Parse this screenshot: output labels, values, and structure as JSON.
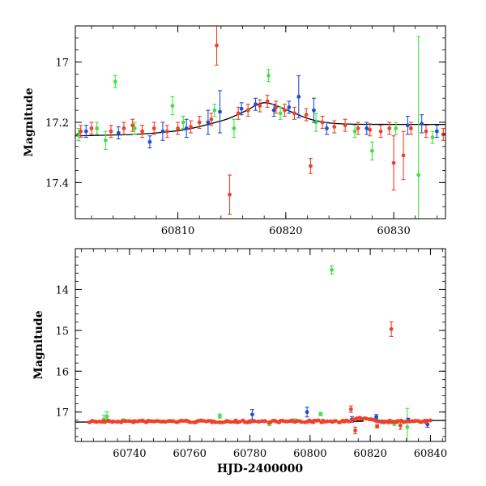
{
  "colors": {
    "green": "#44e044",
    "blue": "#1f4fd8",
    "red": "#f0402a",
    "model": "#000000"
  },
  "chart_data": [
    {
      "type": "scatter",
      "panel": "top",
      "xlabel": "",
      "ylabel": "Magnitude",
      "xlim": [
        60800.5,
        60834.8
      ],
      "ylim": [
        17.52,
        16.88
      ],
      "y_inverted": true,
      "x_ticks": [
        60810,
        60820,
        60830
      ],
      "x_tick_labels": [
        "60810",
        "60820",
        "60830"
      ],
      "y_ticks": [
        17.0,
        17.2,
        17.4
      ],
      "y_tick_labels": [
        "17",
        "17.2",
        "17.4"
      ],
      "model_curve": {
        "x": [
          60800.5,
          60803,
          60806,
          60809,
          60811,
          60813,
          60814.5,
          60815.5,
          60816.5,
          60817.3,
          60818,
          60818.7,
          60819.5,
          60820.5,
          60821.5,
          60822.5,
          60824,
          60826,
          60830,
          60834.8
        ],
        "y": [
          17.245,
          17.243,
          17.24,
          17.232,
          17.222,
          17.205,
          17.19,
          17.175,
          17.158,
          17.142,
          17.135,
          17.139,
          17.15,
          17.165,
          17.18,
          17.192,
          17.202,
          17.206,
          17.207,
          17.207
        ]
      },
      "series": [
        {
          "color_key": "green",
          "points": [
            {
              "x": 60800.8,
              "y": 17.24,
              "err": 0.02
            },
            {
              "x": 60802.5,
              "y": 17.22,
              "err": 0.02
            },
            {
              "x": 60803.3,
              "y": 17.26,
              "err": 0.03
            },
            {
              "x": 60804.2,
              "y": 17.065,
              "err": 0.02
            },
            {
              "x": 60806.0,
              "y": 17.22,
              "err": 0.02
            },
            {
              "x": 60809.5,
              "y": 17.145,
              "err": 0.03
            },
            {
              "x": 60810.5,
              "y": 17.2,
              "err": 0.02
            },
            {
              "x": 60813.4,
              "y": 17.16,
              "err": 0.02
            },
            {
              "x": 60815.2,
              "y": 17.22,
              "err": 0.03
            },
            {
              "x": 60818.4,
              "y": 17.045,
              "err": 0.02
            },
            {
              "x": 60819.5,
              "y": 17.17,
              "err": 0.02
            },
            {
              "x": 60822.8,
              "y": 17.2,
              "err": 0.03
            },
            {
              "x": 60826.4,
              "y": 17.23,
              "err": 0.02
            },
            {
              "x": 60828.0,
              "y": 17.295,
              "err": 0.03
            },
            {
              "x": 60830.2,
              "y": 17.22,
              "err": 0.02
            },
            {
              "x": 60832.3,
              "y": 17.375,
              "err": 0.46
            },
            {
              "x": 60833.6,
              "y": 17.25,
              "err": 0.02
            }
          ]
        },
        {
          "color_key": "blue",
          "points": [
            {
              "x": 60801.5,
              "y": 17.23,
              "err": 0.02
            },
            {
              "x": 60804.5,
              "y": 17.235,
              "err": 0.02
            },
            {
              "x": 60807.4,
              "y": 17.265,
              "err": 0.02
            },
            {
              "x": 60808.6,
              "y": 17.23,
              "err": 0.03
            },
            {
              "x": 60810.8,
              "y": 17.22,
              "err": 0.03
            },
            {
              "x": 60812.8,
              "y": 17.2,
              "err": 0.04
            },
            {
              "x": 60813.9,
              "y": 17.165,
              "err": 0.07
            },
            {
              "x": 60815.9,
              "y": 17.155,
              "err": 0.02
            },
            {
              "x": 60817.2,
              "y": 17.14,
              "err": 0.02
            },
            {
              "x": 60818.9,
              "y": 17.16,
              "err": 0.02
            },
            {
              "x": 60820.3,
              "y": 17.15,
              "err": 0.02
            },
            {
              "x": 60821.2,
              "y": 17.115,
              "err": 0.07
            },
            {
              "x": 60822.6,
              "y": 17.16,
              "err": 0.04
            },
            {
              "x": 60823.8,
              "y": 17.22,
              "err": 0.02
            },
            {
              "x": 60827.5,
              "y": 17.22,
              "err": 0.02
            },
            {
              "x": 60831.3,
              "y": 17.21,
              "err": 0.03
            },
            {
              "x": 60832.6,
              "y": 17.205,
              "err": 0.03
            },
            {
              "x": 60834.0,
              "y": 17.23,
              "err": 0.02
            }
          ]
        },
        {
          "color_key": "red",
          "points": [
            {
              "x": 60801.0,
              "y": 17.23,
              "err": 0.02
            },
            {
              "x": 60802.0,
              "y": 17.22,
              "err": 0.02
            },
            {
              "x": 60803.8,
              "y": 17.23,
              "err": 0.02
            },
            {
              "x": 60805.0,
              "y": 17.22,
              "err": 0.02
            },
            {
              "x": 60805.8,
              "y": 17.21,
              "err": 0.02
            },
            {
              "x": 60806.7,
              "y": 17.23,
              "err": 0.02
            },
            {
              "x": 60807.8,
              "y": 17.22,
              "err": 0.02
            },
            {
              "x": 60809.0,
              "y": 17.23,
              "err": 0.02
            },
            {
              "x": 60810.0,
              "y": 17.22,
              "err": 0.02
            },
            {
              "x": 60811.2,
              "y": 17.215,
              "err": 0.02
            },
            {
              "x": 60812.0,
              "y": 17.2,
              "err": 0.02
            },
            {
              "x": 60813.1,
              "y": 17.19,
              "err": 0.02
            },
            {
              "x": 60813.6,
              "y": 16.945,
              "err": 0.065
            },
            {
              "x": 60814.8,
              "y": 17.44,
              "err": 0.065
            },
            {
              "x": 60815.6,
              "y": 17.17,
              "err": 0.02
            },
            {
              "x": 60816.5,
              "y": 17.16,
              "err": 0.02
            },
            {
              "x": 60817.6,
              "y": 17.145,
              "err": 0.02
            },
            {
              "x": 60818.3,
              "y": 17.13,
              "err": 0.02
            },
            {
              "x": 60819.1,
              "y": 17.15,
              "err": 0.02
            },
            {
              "x": 60819.9,
              "y": 17.16,
              "err": 0.02
            },
            {
              "x": 60820.8,
              "y": 17.17,
              "err": 0.02
            },
            {
              "x": 60821.9,
              "y": 17.175,
              "err": 0.02
            },
            {
              "x": 60822.3,
              "y": 17.345,
              "err": 0.025
            },
            {
              "x": 60823.4,
              "y": 17.2,
              "err": 0.02
            },
            {
              "x": 60824.5,
              "y": 17.215,
              "err": 0.02
            },
            {
              "x": 60825.5,
              "y": 17.21,
              "err": 0.02
            },
            {
              "x": 60826.7,
              "y": 17.22,
              "err": 0.02
            },
            {
              "x": 60827.8,
              "y": 17.225,
              "err": 0.02
            },
            {
              "x": 60828.8,
              "y": 17.23,
              "err": 0.02
            },
            {
              "x": 60829.6,
              "y": 17.22,
              "err": 0.02
            },
            {
              "x": 60830.0,
              "y": 17.335,
              "err": 0.09
            },
            {
              "x": 60830.9,
              "y": 17.31,
              "err": 0.08
            },
            {
              "x": 60831.6,
              "y": 17.22,
              "err": 0.02
            },
            {
              "x": 60833.0,
              "y": 17.23,
              "err": 0.02
            },
            {
              "x": 60834.6,
              "y": 17.24,
              "err": 0.02
            }
          ]
        }
      ]
    },
    {
      "type": "scatter",
      "panel": "bottom",
      "xlabel": "HJD-2400000",
      "ylabel": "Magnitude",
      "xlim": [
        60722,
        60845
      ],
      "ylim": [
        17.72,
        13.0
      ],
      "y_inverted": true,
      "x_ticks": [
        60740,
        60760,
        60780,
        60800,
        60820,
        60840
      ],
      "x_tick_labels": [
        "60740",
        "60760",
        "60780",
        "60800",
        "60820",
        "60840"
      ],
      "y_ticks": [
        14,
        15,
        16,
        17
      ],
      "y_tick_labels": [
        "14",
        "15",
        "16",
        "17"
      ],
      "model_curve": {
        "x": [
          60722,
          60810,
          60814,
          60817,
          60818,
          60819,
          60822,
          60826,
          60845
        ],
        "y": [
          17.245,
          17.232,
          17.2,
          17.15,
          17.135,
          17.15,
          17.19,
          17.207,
          17.207
        ]
      },
      "series": [
        {
          "color_key": "green",
          "points": [
            {
              "x": 60731.5,
              "y": 17.18,
              "err": 0.1
            },
            {
              "x": 60732.5,
              "y": 17.11,
              "err": 0.12
            },
            {
              "x": 60738.0,
              "y": 17.2,
              "err": 0.03
            },
            {
              "x": 60770.0,
              "y": 17.1,
              "err": 0.05
            },
            {
              "x": 60786.5,
              "y": 17.29,
              "err": 0.04
            },
            {
              "x": 60795.0,
              "y": 17.2,
              "err": 0.03
            },
            {
              "x": 60803.5,
              "y": 17.05,
              "err": 0.04
            },
            {
              "x": 60807.2,
              "y": 13.52,
              "err": 0.1
            },
            {
              "x": 60822.0,
              "y": 17.15,
              "err": 0.04
            },
            {
              "x": 60828.0,
              "y": 17.28,
              "err": 0.05
            },
            {
              "x": 60832.3,
              "y": 17.37,
              "err": 0.46
            }
          ]
        },
        {
          "color_key": "blue",
          "points": [
            {
              "x": 60780.8,
              "y": 17.06,
              "err": 0.12
            },
            {
              "x": 60799.0,
              "y": 17.0,
              "err": 0.12
            },
            {
              "x": 60813.9,
              "y": 17.18,
              "err": 0.07
            },
            {
              "x": 60822.0,
              "y": 17.12,
              "err": 0.06
            },
            {
              "x": 60832.6,
              "y": 17.2,
              "err": 0.05
            },
            {
              "x": 60839.0,
              "y": 17.3,
              "err": 0.07
            }
          ]
        },
        {
          "color_key": "red",
          "points": [
            {
              "x": 60813.6,
              "y": 16.93,
              "err": 0.08
            },
            {
              "x": 60815.0,
              "y": 17.45,
              "err": 0.08
            },
            {
              "x": 60822.3,
              "y": 17.35,
              "err": 0.04
            },
            {
              "x": 60827.0,
              "y": 14.97,
              "err": 0.18
            },
            {
              "x": 60830.0,
              "y": 17.33,
              "err": 0.09
            }
          ],
          "dense_band": {
            "x_start": 60727,
            "x_end": 60840,
            "count": 160,
            "y_center": 17.23,
            "y_scatter": 0.025
          }
        }
      ]
    }
  ]
}
